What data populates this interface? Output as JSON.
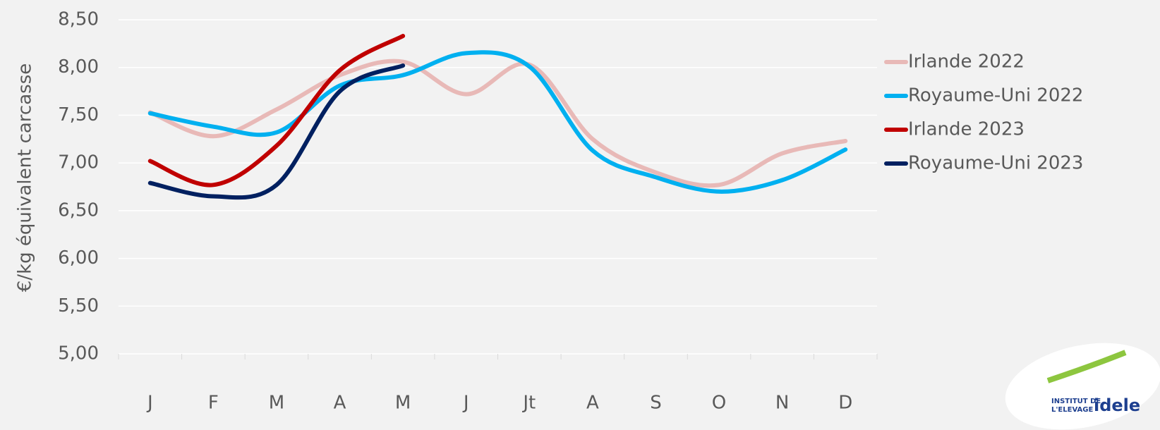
{
  "chart_data": {
    "type": "line",
    "y_label": "€/kg équivalent carcasse",
    "categories": [
      "J",
      "F",
      "M",
      "A",
      "M",
      "J",
      "Jt",
      "A",
      "S",
      "O",
      "N",
      "D"
    ],
    "series": [
      {
        "name": "Irlande 2022",
        "color": "#e8b9b7",
        "values": [
          7.53,
          7.28,
          7.56,
          7.92,
          8.06,
          7.72,
          8.03,
          7.25,
          6.9,
          6.77,
          7.1,
          7.23
        ]
      },
      {
        "name": "Royaume-Uni 2022",
        "color": "#00b0f0",
        "values": [
          7.52,
          7.38,
          7.32,
          7.81,
          7.92,
          8.15,
          8.01,
          7.13,
          6.85,
          6.7,
          6.82,
          7.14
        ]
      },
      {
        "name": "Irlande 2023",
        "color": "#c00000",
        "values": [
          7.02,
          6.77,
          7.18,
          7.97,
          8.33,
          null,
          null,
          null,
          null,
          null,
          null,
          null
        ]
      },
      {
        "name": "Royaume-Uni 2023",
        "color": "#002060",
        "values": [
          6.79,
          6.65,
          6.77,
          7.75,
          8.02,
          null,
          null,
          null,
          null,
          null,
          null,
          null
        ]
      }
    ],
    "ylim": [
      5,
      8.5
    ],
    "yticks": [
      {
        "value": 5,
        "label": "5,00"
      },
      {
        "value": 5.5,
        "label": "5,50"
      },
      {
        "value": 6,
        "label": "6,00"
      },
      {
        "value": 6.5,
        "label": "6,50"
      },
      {
        "value": 7,
        "label": "7,00"
      },
      {
        "value": 7.5,
        "label": "7,50"
      },
      {
        "value": 8,
        "label": "8,00"
      },
      {
        "value": 8.5,
        "label": "8,50"
      }
    ],
    "grid": true,
    "legend": "right",
    "logo": {
      "line1": "INSTITUT DE",
      "line2": "L'ELEVAGE",
      "brand": "idele"
    }
  }
}
